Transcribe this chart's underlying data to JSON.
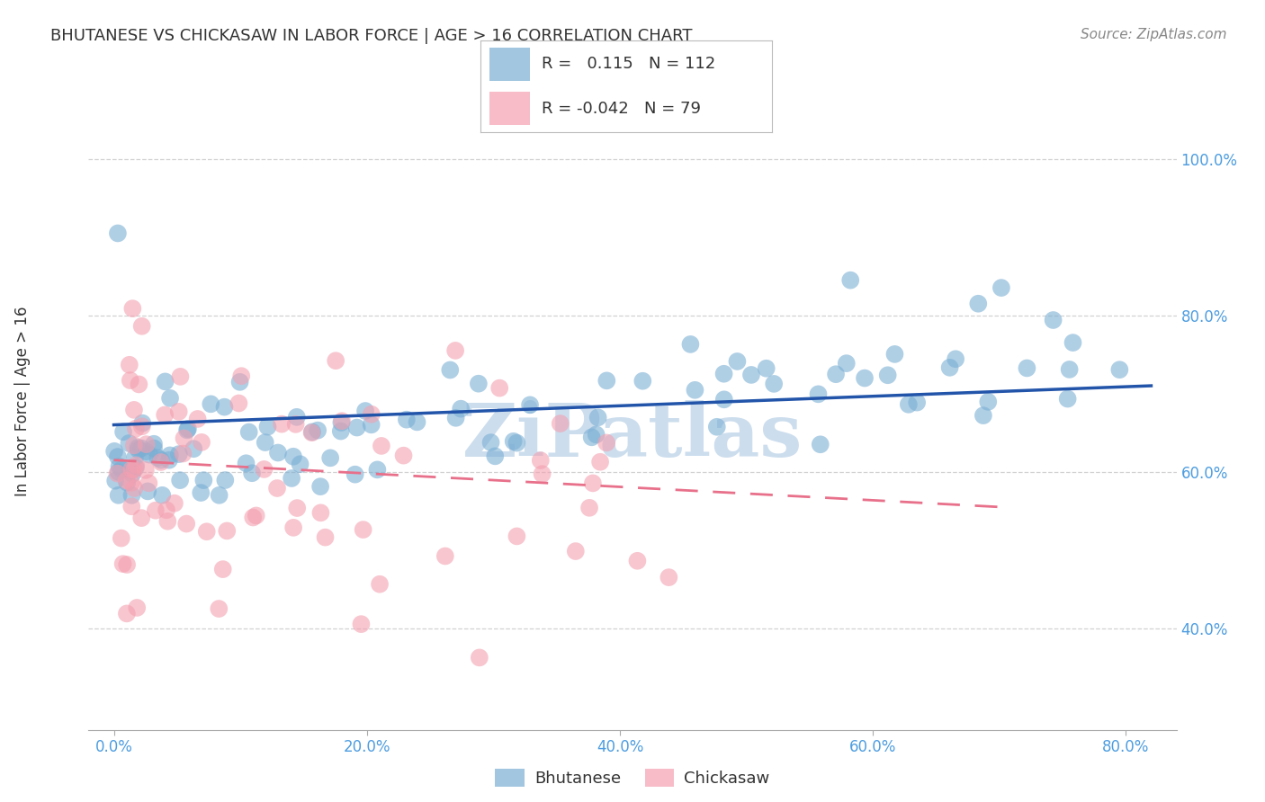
{
  "title": "BHUTANESE VS CHICKASAW IN LABOR FORCE | AGE > 16 CORRELATION CHART",
  "source": "Source: ZipAtlas.com",
  "xlabel_ticks": [
    "0.0%",
    "20.0%",
    "40.0%",
    "60.0%",
    "80.0%"
  ],
  "xlabel_vals": [
    0.0,
    0.2,
    0.4,
    0.6,
    0.8
  ],
  "ylabel_ticks": [
    "40.0%",
    "60.0%",
    "80.0%",
    "100.0%"
  ],
  "ylabel_vals": [
    0.4,
    0.6,
    0.8,
    1.0
  ],
  "xlim": [
    -0.02,
    0.84
  ],
  "ylim": [
    0.27,
    1.07
  ],
  "blue_R": 0.115,
  "blue_N": 112,
  "pink_R": -0.042,
  "pink_N": 79,
  "blue_color": "#7bafd4",
  "pink_color": "#f4a0b0",
  "blue_line_color": "#2255aa",
  "pink_line_color": "#e8708a",
  "title_color": "#333333",
  "tick_label_color": "#4d9de0",
  "watermark_color": "#ccdded",
  "grid_color": "#cccccc",
  "legend_label_blue": "Bhutanese",
  "legend_label_pink": "Chickasaw",
  "blue_trend_x0": 0.0,
  "blue_trend_x1": 0.82,
  "blue_trend_y0": 0.66,
  "blue_trend_y1": 0.71,
  "pink_trend_x0": 0.0,
  "pink_trend_x1": 0.7,
  "pink_trend_y0": 0.615,
  "pink_trend_y1": 0.555
}
